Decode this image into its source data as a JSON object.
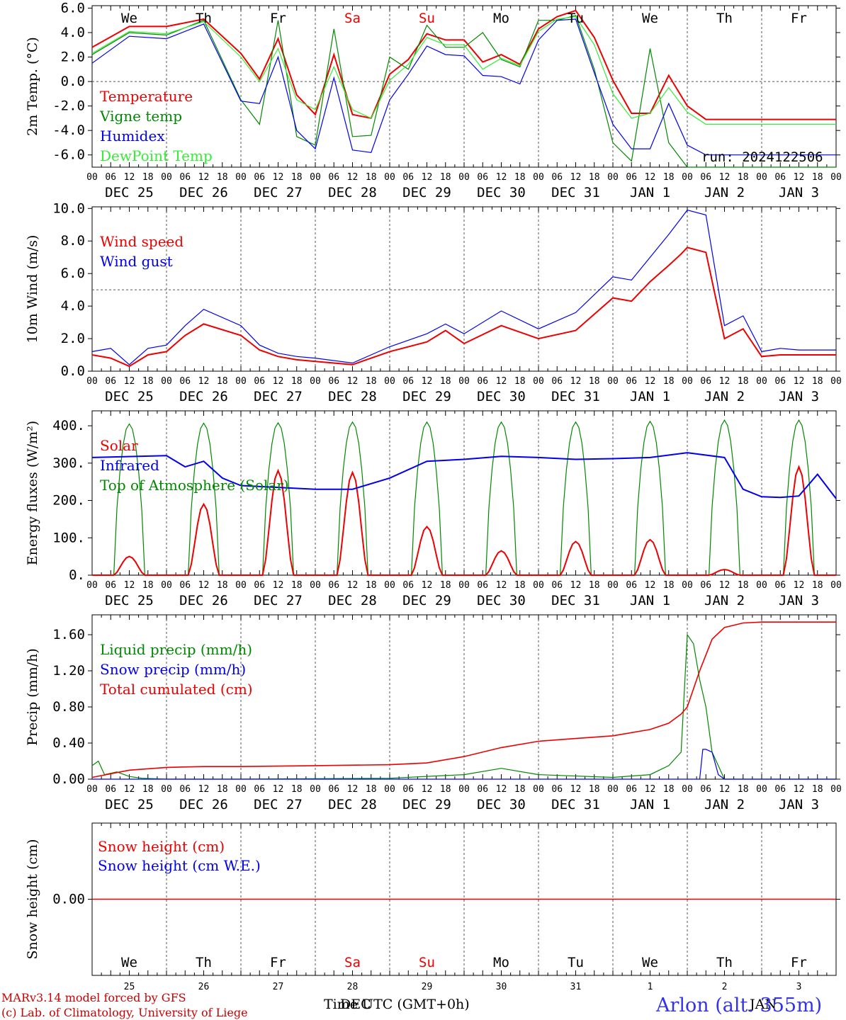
{
  "footer": {
    "model": "MARv3.14 model forced by GFS",
    "lab": "(c) Lab. of Climatology, University of Liege",
    "station": "Arlon (alt. 355m)",
    "xtitle": "Time UTC (GMT+0h)",
    "xtitle_extra": "DEC",
    "xtitle_extra2": "JAN"
  },
  "colors": {
    "red": "#ee0000",
    "green": "#008800",
    "blue": "#0000ee",
    "lightgreen": "#33ee33"
  },
  "axis": {
    "hour_ticks": [
      "00",
      "06",
      "12",
      "18"
    ],
    "final_tick": "00",
    "dates": [
      "DEC 25",
      "DEC 26",
      "DEC 27",
      "DEC 28",
      "DEC 29",
      "DEC 30",
      "DEC 31",
      "JAN  1",
      "JAN  2",
      "JAN  3"
    ],
    "days": [
      {
        "label": "We",
        "color": "#000000"
      },
      {
        "label": "Th",
        "color": "#000000"
      },
      {
        "label": "Fr",
        "color": "#000000"
      },
      {
        "label": "Sa",
        "color": "#ee0000"
      },
      {
        "label": "Su",
        "color": "#ee0000"
      },
      {
        "label": "Mo",
        "color": "#000000"
      },
      {
        "label": "Tu",
        "color": "#000000"
      },
      {
        "label": "We",
        "color": "#000000"
      },
      {
        "label": "Th",
        "color": "#000000"
      },
      {
        "label": "Fr",
        "color": "#000000"
      }
    ],
    "day_numbers": [
      "25",
      "26",
      "27",
      "28",
      "29",
      "30",
      "31",
      "1",
      "2",
      "3"
    ]
  },
  "chart_data": [
    {
      "type": "line",
      "ylabel": "2m Temp. (°C)",
      "ylim": [
        -7,
        6.2
      ],
      "yticks": [
        "6.0",
        "4.0",
        "2.0",
        "0.0",
        "-2.0",
        "-4.0",
        "-6.0"
      ],
      "ytick_values": [
        6,
        4,
        2,
        0,
        -2,
        -4,
        -6
      ],
      "dashed_ref": 0,
      "run": "run: 2024122506",
      "x_hours": [
        0,
        12,
        24,
        36,
        48,
        54,
        60,
        66,
        72,
        78,
        84,
        90,
        96,
        102,
        108,
        114,
        120,
        126,
        132,
        138,
        144,
        150,
        156,
        162,
        168,
        174,
        180,
        186,
        192,
        198,
        204,
        210,
        216,
        222,
        228,
        234,
        240
      ],
      "series": [
        {
          "name": "Temperature",
          "color": "#ee0000",
          "values": [
            2.8,
            4.5,
            4.5,
            5.1,
            2.3,
            0.2,
            3.5,
            -1.1,
            -2.7,
            2.2,
            -2.7,
            -3.0,
            0.6,
            1.8,
            3.9,
            3.4,
            3.4,
            1.6,
            2.2,
            1.4,
            4.3,
            5.3,
            5.8,
            3.6,
            0.1,
            -2.6,
            -2.6,
            0.5,
            -2.0,
            -3.1,
            -3.1,
            -3.1,
            -3.1,
            -3.1,
            -3.1,
            -3.1,
            -3.1
          ]
        },
        {
          "name": "Vigne temp",
          "color": "#008800",
          "values": [
            2.2,
            4.0,
            3.8,
            5.0,
            -1.5,
            -3.5,
            5.0,
            -4.5,
            -5.2,
            4.3,
            -4.5,
            -4.4,
            2.0,
            1.0,
            4.6,
            2.8,
            2.8,
            4.0,
            1.8,
            1.2,
            5.0,
            5.0,
            5.4,
            1.0,
            -5.0,
            -6.5,
            2.7,
            -5.0,
            -7.0,
            -7.0,
            -7.0,
            -7.0,
            -7.0,
            -7.0,
            -7.0,
            -7.0,
            -7.0
          ]
        },
        {
          "name": "Humidex",
          "color": "#0000ee",
          "values": [
            1.5,
            3.7,
            3.5,
            4.7,
            -1.6,
            -1.8,
            2.0,
            -4.0,
            -5.5,
            0.3,
            -5.6,
            -5.8,
            -1.5,
            0.6,
            2.9,
            2.2,
            2.1,
            0.5,
            0.4,
            -0.2,
            3.4,
            5.0,
            5.1,
            0.7,
            -3.5,
            -5.5,
            -5.5,
            -1.8,
            -5.2,
            -6.0,
            -6.0,
            -6.0,
            -6.0,
            -6.0,
            -6.0,
            -6.0,
            -6.0
          ]
        },
        {
          "name": "DewPoint Temp",
          "color": "#33ee33",
          "values": [
            2.3,
            4.1,
            3.9,
            4.9,
            2.0,
            0.0,
            2.7,
            -1.5,
            -2.3,
            1.2,
            -2.3,
            -3.0,
            0.1,
            1.4,
            3.6,
            3.0,
            3.0,
            1.0,
            1.9,
            1.3,
            4.1,
            5.1,
            5.3,
            3.0,
            -1.0,
            -3.0,
            -2.6,
            -0.5,
            -2.5,
            -3.5,
            -3.5,
            -3.5,
            -3.5,
            -3.5,
            -3.5,
            -3.5,
            -3.5
          ]
        }
      ]
    },
    {
      "type": "line",
      "ylabel": "10m Wind (m/s)",
      "ylim": [
        0,
        10.1
      ],
      "yticks": [
        "10.0",
        "8.0",
        "6.0",
        "4.0",
        "2.0",
        "0.0"
      ],
      "ytick_values": [
        10,
        8,
        6,
        4,
        2,
        0
      ],
      "dashed_ref": 5,
      "x_hours": [
        0,
        6,
        12,
        18,
        24,
        30,
        36,
        48,
        54,
        60,
        66,
        72,
        84,
        96,
        108,
        114,
        120,
        132,
        144,
        156,
        168,
        174,
        180,
        186,
        190,
        192,
        198,
        204,
        210,
        216,
        222,
        228,
        234,
        240
      ],
      "series": [
        {
          "name": "Wind speed",
          "color": "#ee0000",
          "values": [
            1.0,
            0.8,
            0.3,
            1.0,
            1.2,
            2.2,
            2.9,
            2.2,
            1.3,
            0.9,
            0.7,
            0.6,
            0.4,
            1.2,
            1.8,
            2.5,
            1.7,
            2.8,
            2.0,
            2.5,
            4.5,
            4.3,
            5.5,
            6.5,
            7.2,
            7.6,
            7.3,
            2.0,
            2.6,
            0.9,
            1.0,
            1.0,
            1.0,
            1.0
          ]
        },
        {
          "name": "Wind gust",
          "color": "#0000ee",
          "values": [
            1.2,
            1.4,
            0.4,
            1.4,
            1.6,
            2.8,
            3.8,
            2.8,
            1.6,
            1.1,
            0.9,
            0.8,
            0.5,
            1.5,
            2.3,
            2.9,
            2.3,
            3.7,
            2.6,
            3.6,
            5.8,
            5.6,
            7.0,
            8.4,
            9.4,
            9.9,
            9.6,
            2.8,
            3.4,
            1.2,
            1.4,
            1.3,
            1.3,
            1.3
          ]
        }
      ]
    },
    {
      "type": "line",
      "ylabel": "Energy fluxes (W/m²)",
      "ylim": [
        0,
        440
      ],
      "yticks": [
        "400.",
        "300.",
        "200.",
        "100.",
        "0."
      ],
      "ytick_values": [
        400,
        300,
        200,
        100,
        0
      ],
      "solar_peaks": [
        50,
        190,
        280,
        275,
        130,
        65,
        90,
        95,
        15,
        290
      ],
      "toa_peaks": [
        405,
        407,
        408,
        410,
        410,
        410,
        410,
        412,
        415,
        415
      ],
      "infrared_x": [
        0,
        24,
        30,
        36,
        42,
        48,
        60,
        72,
        84,
        96,
        108,
        120,
        132,
        144,
        156,
        168,
        180,
        192,
        204,
        210,
        216,
        222,
        228,
        234,
        240
      ],
      "series": [
        {
          "name": "Solar",
          "color": "#ee0000"
        },
        {
          "name": "Infrared",
          "color": "#0000ee",
          "values": [
            315,
            320,
            290,
            305,
            260,
            240,
            235,
            230,
            230,
            260,
            305,
            310,
            318,
            315,
            310,
            312,
            315,
            328,
            315,
            230,
            210,
            208,
            212,
            270,
            205
          ]
        },
        {
          "name": "Top of Atmosphere (Solar)",
          "color": "#008800"
        }
      ]
    },
    {
      "type": "line",
      "ylabel": "Precip (mm/h)",
      "ylim": [
        0,
        1.82
      ],
      "yticks": [
        "1.60",
        "1.20",
        "0.80",
        "0.40",
        "0.00"
      ],
      "ytick_values": [
        1.6,
        1.2,
        0.8,
        0.4,
        0
      ],
      "series": [
        {
          "name": "Liquid precip (mm/h)",
          "color": "#008800",
          "x": [
            0,
            2,
            4,
            8,
            12,
            16,
            24,
            48,
            96,
            120,
            132,
            144,
            168,
            180,
            186,
            190,
            192,
            194,
            196,
            198,
            200,
            204,
            210,
            240
          ],
          "values": [
            0.15,
            0.2,
            0.05,
            0.08,
            0.03,
            0.01,
            0.0,
            0.0,
            0.01,
            0.05,
            0.12,
            0.05,
            0.02,
            0.05,
            0.15,
            0.3,
            1.6,
            1.5,
            1.1,
            0.8,
            0.3,
            0.0,
            0.0,
            0.0
          ]
        },
        {
          "name": "Snow precip (mm/h)",
          "color": "#0000ee",
          "x": [
            0,
            190,
            196,
            197,
            198,
            200,
            202,
            204,
            240
          ],
          "values": [
            0,
            0,
            0,
            0.33,
            0.33,
            0.3,
            0.05,
            0,
            0
          ]
        },
        {
          "name": "Total cumulated (cm)",
          "color": "#ee0000",
          "x": [
            0,
            12,
            24,
            36,
            48,
            72,
            96,
            108,
            120,
            132,
            144,
            156,
            168,
            180,
            186,
            190,
            192,
            196,
            200,
            204,
            210,
            216,
            240
          ],
          "values": [
            0.02,
            0.1,
            0.13,
            0.14,
            0.14,
            0.15,
            0.16,
            0.18,
            0.25,
            0.35,
            0.42,
            0.45,
            0.48,
            0.55,
            0.62,
            0.72,
            0.8,
            1.2,
            1.55,
            1.68,
            1.73,
            1.74,
            1.74
          ]
        }
      ]
    },
    {
      "type": "line",
      "ylabel": "Snow height (cm)",
      "ylim": [
        -1,
        1
      ],
      "yticks": [
        "0.00"
      ],
      "ytick_values": [
        0
      ],
      "series": [
        {
          "name": "Snow height (cm)",
          "color": "#ee0000",
          "values": [
            0,
            0
          ]
        },
        {
          "name": "Snow height (cm W.E.)",
          "color": "#0000ee",
          "values": [
            0,
            0
          ]
        }
      ]
    }
  ]
}
